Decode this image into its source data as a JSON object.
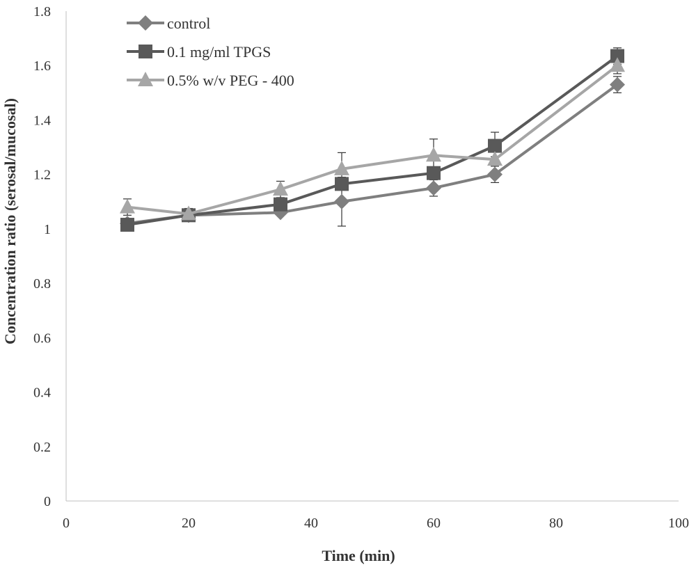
{
  "chart_data": {
    "type": "line",
    "title": "",
    "xlabel": "Time (min)",
    "ylabel": "Concentration ratio (serosal/mucosal)",
    "xlim": [
      0,
      100
    ],
    "ylim": [
      0,
      1.8
    ],
    "xticks": [
      0,
      20,
      40,
      60,
      80,
      100
    ],
    "yticks": [
      0,
      0.2,
      0.4,
      0.6,
      0.8,
      1,
      1.2,
      1.4,
      1.6,
      1.8
    ],
    "grid": false,
    "legend_position": "top-left",
    "x": [
      10,
      20,
      35,
      45,
      60,
      70,
      90
    ],
    "series": [
      {
        "name": "control",
        "marker": "diamond",
        "color": "#7f7f7f",
        "values": [
          1.02,
          1.05,
          1.06,
          1.1,
          1.15,
          1.2,
          1.53
        ],
        "errors": [
          0.01,
          0.01,
          0.01,
          0.09,
          0.03,
          0.03,
          0.03
        ]
      },
      {
        "name": "0.1 mg/ml TPGS",
        "marker": "square",
        "color": "#595959",
        "values": [
          1.015,
          1.05,
          1.09,
          1.165,
          1.205,
          1.305,
          1.635
        ],
        "errors": [
          0.01,
          0.02,
          0.01,
          0.01,
          0.01,
          0.05,
          0.03
        ]
      },
      {
        "name": "0.5% w/v PEG - 400",
        "marker": "triangle",
        "color": "#a6a6a6",
        "values": [
          1.08,
          1.055,
          1.145,
          1.22,
          1.27,
          1.255,
          1.6
        ],
        "errors": [
          0.03,
          0.02,
          0.03,
          0.06,
          0.06,
          0.01,
          0.03
        ]
      }
    ]
  }
}
